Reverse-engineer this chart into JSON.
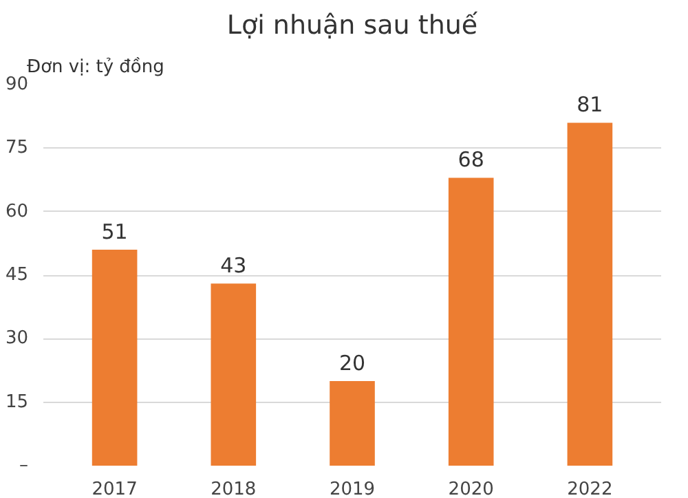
{
  "chart_data": {
    "type": "bar",
    "title": "Lợi nhuận sau thuế",
    "ylabel": "Đơn vị: tỷ đồng",
    "categories": [
      "2017",
      "2018",
      "2019",
      "2020",
      "2022"
    ],
    "values": [
      51,
      43,
      20,
      68,
      81
    ],
    "color": "#ed7d31",
    "ylim": [
      0,
      90
    ],
    "yticks": [
      {
        "value": 0,
        "label": "–"
      },
      15,
      30,
      45,
      60,
      75,
      90
    ],
    "grid": "y",
    "data_labels": true
  }
}
